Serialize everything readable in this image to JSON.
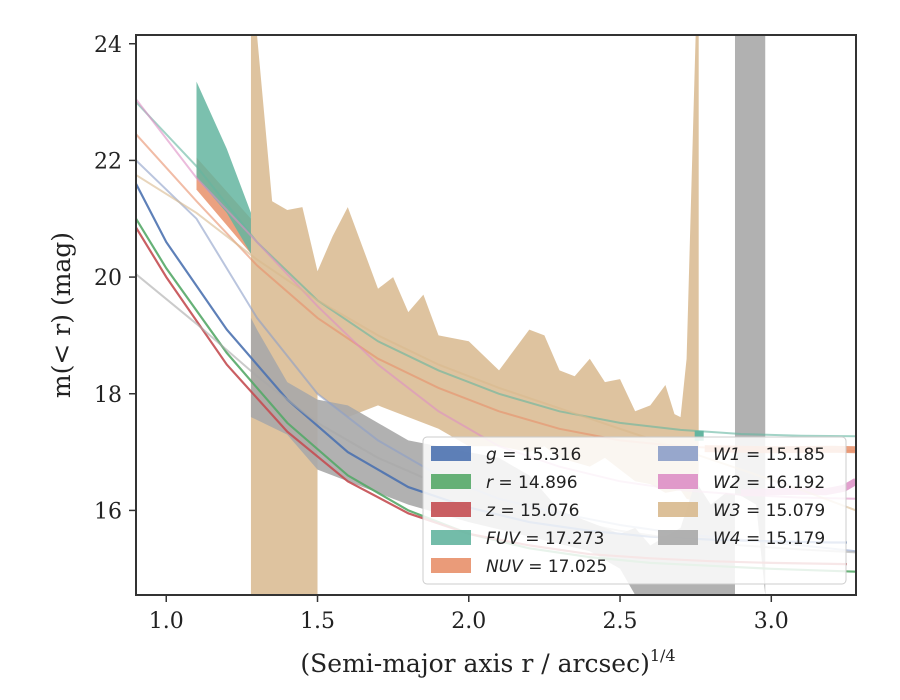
{
  "chart_data": {
    "type": "line",
    "title": "",
    "xlabel": "(Semi-major axis r / arcsec)",
    "xlabel_sup": "1/4",
    "ylabel": "m(< r) (mag)",
    "xlim": [
      0.9,
      3.28
    ],
    "ylim": [
      24.15,
      14.55
    ],
    "y_inverted": true,
    "xticks": [
      1.0,
      1.5,
      2.0,
      2.5,
      3.0
    ],
    "xtick_labels": [
      "1.0",
      "1.5",
      "2.0",
      "2.5",
      "3.0"
    ],
    "yticks": [
      16,
      18,
      20,
      22,
      24
    ],
    "ytick_labels": [
      "16",
      "18",
      "20",
      "22",
      "24"
    ],
    "grid": false,
    "legend_placement": "lower-right",
    "series": [
      {
        "name": "g",
        "value": "15.316",
        "color": "#4c72b0",
        "x": [
          0.9,
          1.0,
          1.2,
          1.4,
          1.6,
          1.8,
          2.0,
          2.2,
          2.4,
          2.6,
          2.8,
          3.0,
          3.2,
          3.25
        ],
        "y": [
          21.6,
          20.6,
          19.1,
          17.9,
          17.0,
          16.4,
          16.05,
          15.8,
          15.65,
          15.55,
          15.5,
          15.47,
          15.45,
          15.45
        ],
        "band": [
          0.9,
          3.25
        ]
      },
      {
        "name": "r",
        "value": "14.896",
        "color": "#55a868",
        "x": [
          0.9,
          1.0,
          1.2,
          1.4,
          1.6,
          1.8,
          2.0,
          2.2,
          2.4,
          2.6,
          2.8,
          3.0,
          3.28
        ],
        "y": [
          21.0,
          20.15,
          18.7,
          17.5,
          16.6,
          16.0,
          15.6,
          15.35,
          15.2,
          15.1,
          15.05,
          15.0,
          14.95
        ]
      },
      {
        "name": "z",
        "value": "15.076",
        "color": "#c44e52",
        "x": [
          0.9,
          1.0,
          1.2,
          1.4,
          1.6,
          1.8,
          2.0,
          2.2,
          2.4,
          2.6,
          2.8,
          3.0,
          3.25
        ],
        "y": [
          20.85,
          20.0,
          18.5,
          17.35,
          16.5,
          15.95,
          15.6,
          15.4,
          15.25,
          15.18,
          15.13,
          15.1,
          15.08
        ]
      },
      {
        "name": "FUV",
        "value": "17.273",
        "color": "#64b5a0",
        "x": [
          0.9,
          1.1,
          1.3,
          1.5,
          1.7,
          1.9,
          2.1,
          2.3,
          2.5,
          2.7,
          2.9,
          3.1,
          3.28
        ],
        "y": [
          23.0,
          21.9,
          20.6,
          19.6,
          18.9,
          18.4,
          18.0,
          17.7,
          17.5,
          17.38,
          17.31,
          17.28,
          17.27
        ],
        "band_x": [
          1.1,
          1.2,
          1.28,
          1.28,
          1.2,
          1.1
        ],
        "band_y": [
          21.7,
          21.1,
          20.4,
          21.1,
          22.2,
          23.35
        ]
      },
      {
        "name": "NUV",
        "value": "17.025",
        "color": "#e8906a",
        "x": [
          0.9,
          1.1,
          1.3,
          1.5,
          1.7,
          1.9,
          2.1,
          2.3,
          2.5,
          2.7,
          2.9,
          3.1,
          3.28
        ],
        "y": [
          22.45,
          21.3,
          20.2,
          19.3,
          18.6,
          18.1,
          17.7,
          17.4,
          17.2,
          17.1,
          17.05,
          17.03,
          17.02
        ],
        "band_x": [
          1.1,
          1.28,
          1.28,
          1.1
        ],
        "band_y": [
          21.5,
          20.4,
          21.0,
          22.05
        ],
        "thick_x": [
          2.78,
          3.0,
          3.2,
          3.28
        ],
        "thick_y": [
          17.06,
          17.04,
          17.05,
          17.04
        ]
      },
      {
        "name": "W1",
        "value": "15.185",
        "color": "#8c9fc8",
        "x": [
          0.9,
          1.1,
          1.3,
          1.5,
          1.7,
          1.9,
          2.1,
          2.3,
          2.5,
          2.7,
          2.9,
          3.1,
          3.28
        ],
        "y": [
          22.0,
          21.0,
          19.3,
          18.0,
          17.2,
          16.6,
          16.2,
          15.95,
          15.75,
          15.6,
          15.5,
          15.4,
          15.3
        ]
      },
      {
        "name": "W2",
        "value": "16.192",
        "color": "#dd8fc5",
        "x": [
          0.9,
          1.1,
          1.3,
          1.5,
          1.7,
          1.9,
          2.1,
          2.3,
          2.5,
          2.7,
          2.9,
          3.1,
          3.28
        ],
        "y": [
          23.05,
          21.7,
          20.6,
          19.5,
          18.5,
          17.7,
          17.1,
          16.75,
          16.5,
          16.35,
          16.27,
          16.22,
          16.2
        ],
        "thick_x": [
          2.9,
          3.0,
          3.1,
          3.18,
          3.24,
          3.28
        ],
        "thick_y": [
          16.3,
          16.32,
          16.33,
          16.32,
          16.38,
          16.5
        ]
      },
      {
        "name": "W3",
        "value": "15.079",
        "color": "#d8b98e",
        "x": [
          0.9,
          1.1,
          1.3,
          1.5,
          1.7,
          1.9,
          2.1,
          2.3,
          2.5,
          2.7,
          2.9,
          3.1,
          3.28
        ],
        "y": [
          21.75,
          21.1,
          20.3,
          19.6,
          19.0,
          18.5,
          18.1,
          17.75,
          17.4,
          17.05,
          16.7,
          16.35,
          16.0
        ],
        "band_x": [
          1.28,
          1.4,
          1.5,
          1.5,
          1.6,
          1.7,
          1.8,
          1.9,
          2.0,
          2.1,
          2.2,
          2.25,
          2.3,
          2.4,
          2.45,
          2.5,
          2.55,
          2.6,
          2.65,
          2.7,
          2.72,
          2.75,
          2.76,
          2.76,
          2.75,
          2.72,
          2.7,
          2.68,
          2.65,
          2.6,
          2.55,
          2.5,
          2.45,
          2.4,
          2.35,
          2.3,
          2.25,
          2.2,
          2.1,
          2.0,
          1.9,
          1.85,
          1.8,
          1.75,
          1.7,
          1.6,
          1.55,
          1.5,
          1.45,
          1.4,
          1.35,
          1.3,
          1.28
        ],
        "band_y": [
          14.55,
          14.55,
          14.55,
          18.0,
          17.6,
          17.8,
          17.6,
          17.4,
          17.1,
          17.1,
          17.0,
          17.1,
          16.9,
          16.75,
          16.9,
          16.7,
          16.5,
          16.45,
          16.3,
          16.35,
          16.2,
          16.15,
          16.15,
          24.15,
          24.15,
          18.6,
          17.6,
          17.65,
          18.15,
          17.8,
          17.7,
          18.25,
          18.2,
          18.6,
          18.3,
          18.4,
          19.0,
          19.1,
          18.4,
          18.9,
          19.0,
          19.7,
          19.4,
          20.0,
          19.8,
          21.2,
          20.7,
          20.1,
          21.2,
          21.15,
          21.3,
          24.15,
          24.15
        ]
      },
      {
        "name": "W4",
        "value": "15.179",
        "color": "#a8a8a8",
        "x": [
          0.9,
          1.1,
          1.3,
          1.5,
          1.7,
          1.9,
          2.1,
          2.3,
          2.5,
          2.7,
          2.9,
          3.1,
          3.28
        ],
        "y": [
          20.05,
          19.2,
          18.3,
          17.5,
          16.9,
          16.45,
          16.1,
          15.85,
          15.65,
          15.5,
          15.4,
          15.33,
          15.28
        ],
        "band_x": [
          1.28,
          1.4,
          1.5,
          1.6,
          1.8,
          2.0,
          2.2,
          2.4,
          2.5,
          2.55,
          2.6,
          2.7,
          2.8,
          2.88,
          2.88,
          2.98,
          2.98,
          2.95,
          2.9,
          2.85,
          2.8,
          2.75,
          2.7,
          2.6,
          2.55,
          2.5,
          2.4,
          2.3,
          2.2,
          2.1,
          2.0,
          1.8,
          1.6,
          1.5,
          1.4,
          1.3,
          1.28
        ],
        "band_y": [
          17.6,
          17.3,
          16.7,
          16.5,
          16.1,
          15.8,
          15.55,
          15.3,
          15.0,
          14.55,
          14.55,
          14.55,
          14.55,
          14.55,
          24.15,
          24.15,
          14.55,
          16.1,
          16.25,
          16.3,
          16.1,
          16.5,
          15.7,
          15.4,
          15.7,
          15.6,
          15.8,
          16.0,
          16.6,
          16.9,
          17.0,
          17.2,
          17.8,
          17.9,
          18.2,
          19.1,
          19.3
        ]
      }
    ]
  }
}
